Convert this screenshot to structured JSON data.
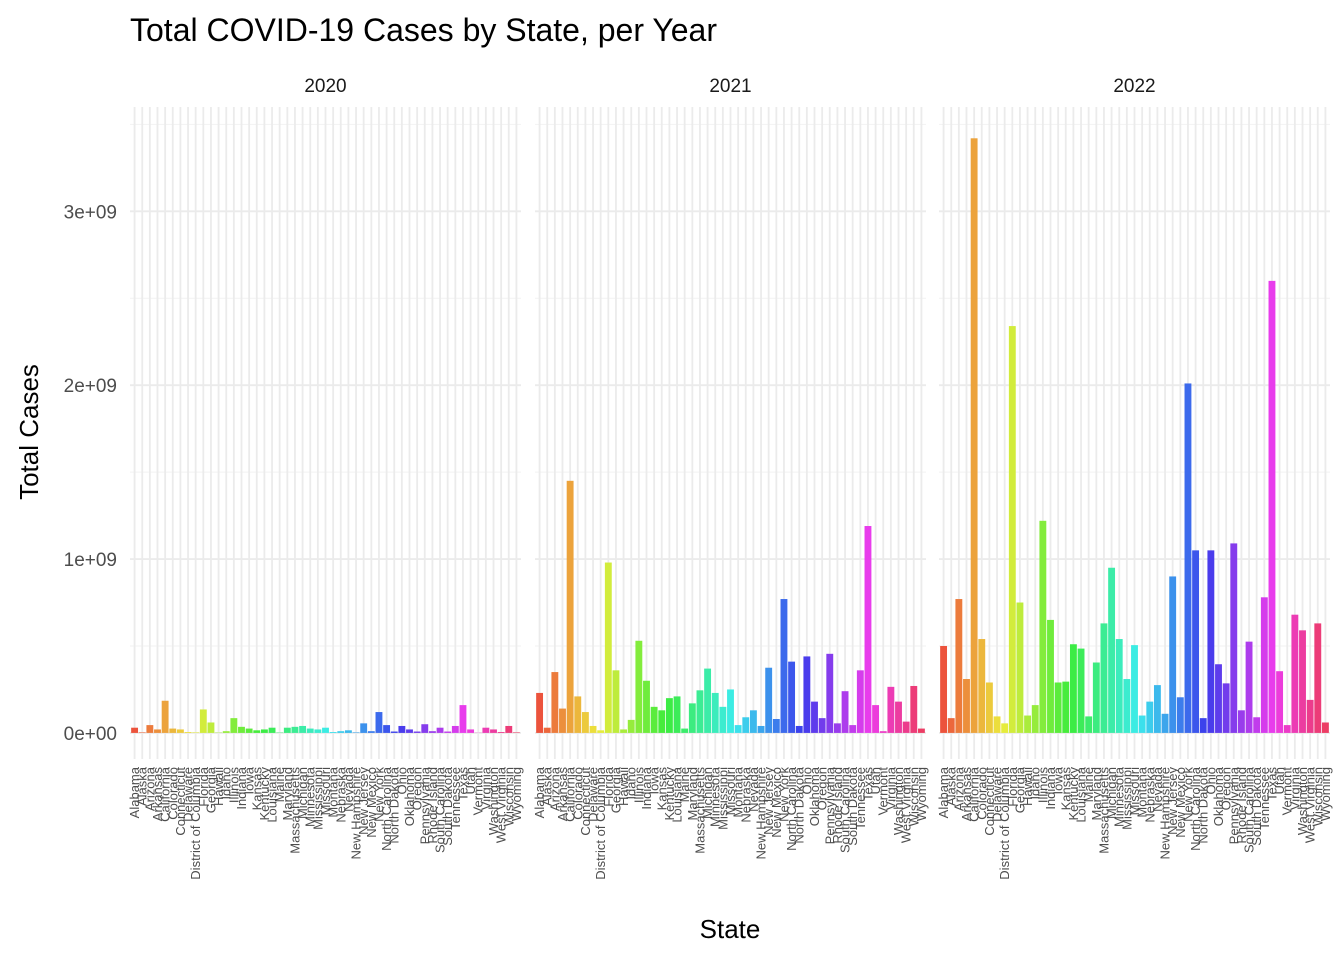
{
  "chart_data": {
    "type": "bar",
    "title": "Total COVID-19 Cases by State, per Year",
    "xlabel": "State",
    "ylabel": "Total Cases",
    "ylim": [
      -150000000,
      3600000000
    ],
    "yticks": [
      0,
      1000000000,
      2000000000,
      3000000000
    ],
    "ytick_labels": [
      "0e+00",
      "1e+09",
      "2e+09",
      "3e+09"
    ],
    "grid": true,
    "legend": "none",
    "facets": [
      "2020",
      "2021",
      "2022"
    ],
    "categories": [
      "Alabama",
      "Alaska",
      "Arizona",
      "Arkansas",
      "California",
      "Colorado",
      "Connecticut",
      "Delaware",
      "District of Columbia",
      "Florida",
      "Georgia",
      "Hawaii",
      "Idaho",
      "Illinois",
      "Indiana",
      "Iowa",
      "Kansas",
      "Kentucky",
      "Louisiana",
      "Maine",
      "Maryland",
      "Massachusetts",
      "Michigan",
      "Minnesota",
      "Mississippi",
      "Missouri",
      "Montana",
      "Nebraska",
      "Nevada",
      "New Hampshire",
      "New Jersey",
      "New Mexico",
      "New York",
      "North Carolina",
      "North Dakota",
      "Ohio",
      "Oklahoma",
      "Oregon",
      "Pennsylvania",
      "Rhode Island",
      "South Carolina",
      "South Dakota",
      "Tennessee",
      "Texas",
      "Utah",
      "Vermont",
      "Virginia",
      "Washington",
      "West Virginia",
      "Wisconsin",
      "Wyoming"
    ],
    "series": [
      {
        "values": [
          30000000,
          3000000,
          45000000,
          20000000,
          185000000,
          25000000,
          20000000,
          5000000,
          3000000,
          135000000,
          60000000,
          2000000,
          10000000,
          85000000,
          35000000,
          25000000,
          15000000,
          20000000,
          30000000,
          2000000,
          30000000,
          35000000,
          40000000,
          25000000,
          20000000,
          30000000,
          5000000,
          10000000,
          15000000,
          3000000,
          55000000,
          10000000,
          120000000,
          45000000,
          8000000,
          40000000,
          20000000,
          8000000,
          50000000,
          10000000,
          30000000,
          8000000,
          40000000,
          160000000,
          20000000,
          1000000,
          30000000,
          20000000,
          5000000,
          40000000,
          3000000
        ]
      },
      {
        "values": [
          230000000,
          30000000,
          350000000,
          140000000,
          1450000000,
          210000000,
          120000000,
          40000000,
          15000000,
          980000000,
          360000000,
          20000000,
          75000000,
          530000000,
          300000000,
          150000000,
          130000000,
          200000000,
          210000000,
          25000000,
          170000000,
          245000000,
          370000000,
          230000000,
          150000000,
          250000000,
          45000000,
          90000000,
          130000000,
          40000000,
          375000000,
          80000000,
          770000000,
          410000000,
          40000000,
          440000000,
          180000000,
          85000000,
          455000000,
          55000000,
          240000000,
          45000000,
          360000000,
          1190000000,
          160000000,
          10000000,
          265000000,
          180000000,
          65000000,
          270000000,
          25000000
        ]
      },
      {
        "values": [
          500000000,
          85000000,
          770000000,
          310000000,
          3420000000,
          540000000,
          290000000,
          95000000,
          55000000,
          2340000000,
          750000000,
          100000000,
          160000000,
          1220000000,
          650000000,
          290000000,
          295000000,
          510000000,
          485000000,
          95000000,
          405000000,
          630000000,
          950000000,
          540000000,
          310000000,
          505000000,
          100000000,
          180000000,
          275000000,
          110000000,
          900000000,
          205000000,
          2010000000,
          1050000000,
          85000000,
          1050000000,
          395000000,
          285000000,
          1090000000,
          130000000,
          525000000,
          90000000,
          780000000,
          2600000000,
          355000000,
          45000000,
          680000000,
          590000000,
          190000000,
          630000000,
          60000000
        ]
      }
    ]
  }
}
